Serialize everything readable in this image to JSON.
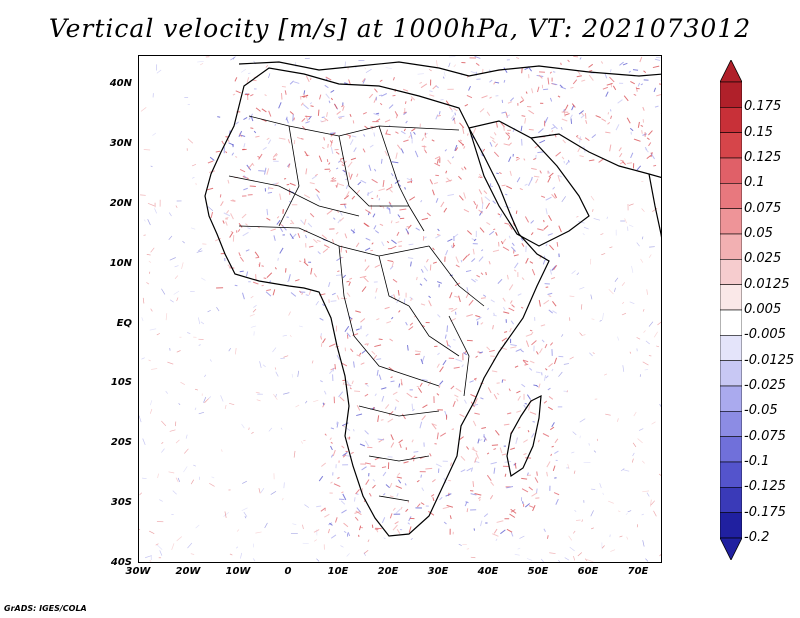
{
  "title": "Vertical velocity [m/s] at 1000hPa, VT: 2021073012",
  "footer": "GrADS: IGES/COLA",
  "map": {
    "region": "Africa, Arabian Peninsula and Mediterranean",
    "lat_labels": [
      "40N",
      "30N",
      "20N",
      "10N",
      "EQ",
      "10S",
      "20S",
      "30S",
      "40S"
    ],
    "lon_labels": [
      "30W",
      "20W",
      "10W",
      "0",
      "10E",
      "20E",
      "30E",
      "40E",
      "50E",
      "60E",
      "70E"
    ]
  },
  "legend": {
    "labels": [
      "0.175",
      "0.15",
      "0.125",
      "0.1",
      "0.075",
      "0.05",
      "0.025",
      "0.0125",
      "0.005",
      "-0.005",
      "-0.0125",
      "-0.025",
      "-0.05",
      "-0.075",
      "-0.1",
      "-0.125",
      "-0.175",
      "-0.2"
    ],
    "colors": [
      "#b0202a",
      "#c83038",
      "#d6454a",
      "#e06068",
      "#e8787e",
      "#ee9498",
      "#f2b0b2",
      "#f6ccce",
      "#fae8e8",
      "#ffffff",
      "#e4e4fa",
      "#c8c8f4",
      "#aaaaee",
      "#8c8ce4",
      "#7070da",
      "#5454cc",
      "#3a3ab8",
      "#2020a0"
    ]
  }
}
